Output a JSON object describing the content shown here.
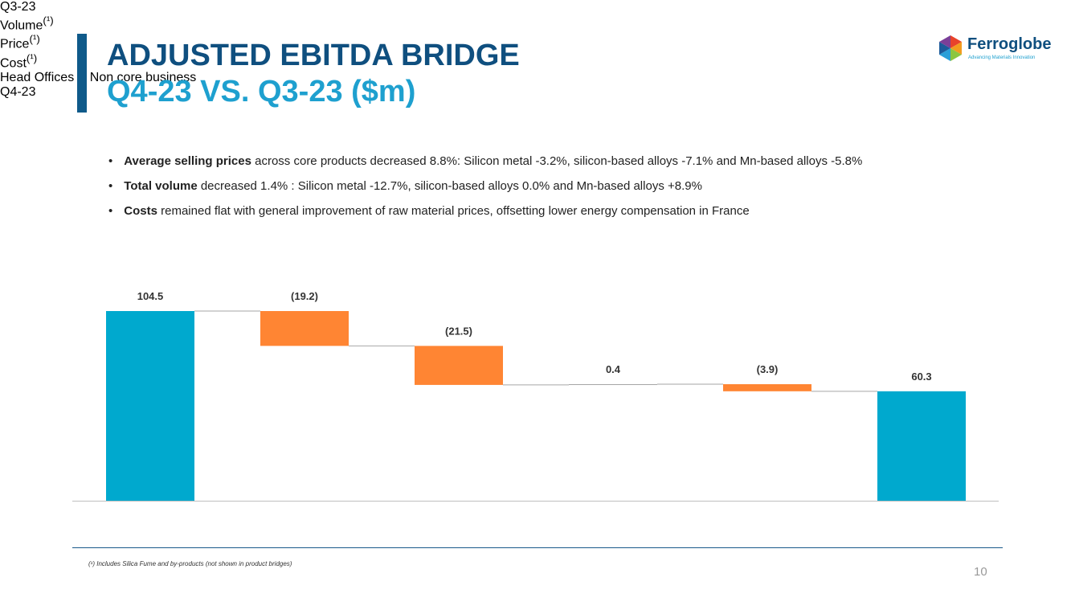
{
  "header": {
    "title": "ADJUSTED EBITDA BRIDGE",
    "subtitle": "Q4-23 VS. Q3-23 ($m)"
  },
  "logo": {
    "name": "Ferroglobe",
    "tagline": "Advancing Materials Innovation"
  },
  "bullets": [
    {
      "bold": "Average selling prices",
      "text": "across core products decreased 8.8%: Silicon metal -3.2%, silicon-based alloys -7.1% and Mn-based alloys -5.8%"
    },
    {
      "bold": "Total volume",
      "text": "decreased 1.4% : Silicon metal -12.7%, silicon-based alloys 0.0% and Mn-based alloys +8.9%"
    },
    {
      "bold": "Costs",
      "text": "remained flat with general improvement of raw material prices, offsetting lower energy compensation in France"
    }
  ],
  "chart_data": {
    "type": "waterfall",
    "categories": [
      "Q3-23",
      "Volume",
      "Price",
      "Cost",
      "Head Offices & Non core business",
      "Q4-23"
    ],
    "category_notes": [
      null,
      "(¹)",
      "(¹)",
      "(¹)",
      null,
      null
    ],
    "measures": [
      "total",
      "relative",
      "relative",
      "relative",
      "relative",
      "total"
    ],
    "values": [
      104.5,
      -19.2,
      -21.5,
      0.4,
      -3.9,
      60.3
    ],
    "value_labels": [
      "104.5",
      "(19.2)",
      "(21.5)",
      "0.4",
      "(3.9)",
      "60.3"
    ],
    "colors": {
      "total": "#00a9ce",
      "decrease": "#ff8533",
      "increase": "#a6a6a6"
    }
  },
  "footnote": "(¹) Includes Silica Fume and by-products (not shown in product bridges)",
  "page_number": "10"
}
